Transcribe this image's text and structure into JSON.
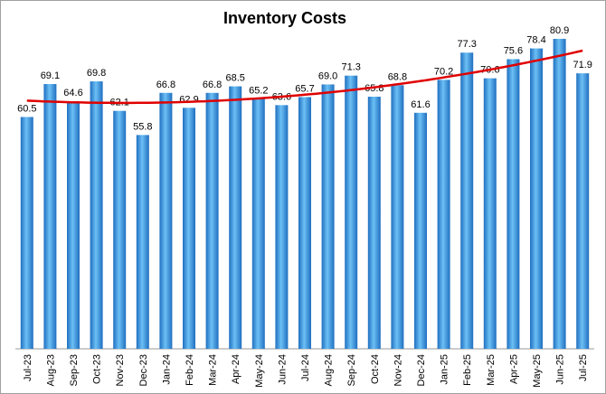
{
  "chart_data": {
    "type": "bar",
    "title": "Inventory Costs",
    "categories": [
      "Jul-23",
      "Aug-23",
      "Sep-23",
      "Oct-23",
      "Nov-23",
      "Dec-23",
      "Jan-24",
      "Feb-24",
      "Mar-24",
      "Apr-24",
      "May-24",
      "Jun-24",
      "Jul-24",
      "Aug-24",
      "Sep-24",
      "Oct-24",
      "Nov-24",
      "Dec-24",
      "Jan-25",
      "Feb-25",
      "Mar-25",
      "Apr-25",
      "May-25",
      "Jun-25",
      "Jul-25"
    ],
    "values": [
      60.5,
      69.1,
      64.6,
      69.8,
      62.1,
      55.8,
      66.8,
      62.9,
      66.8,
      68.5,
      65.2,
      63.6,
      65.7,
      69.0,
      71.3,
      65.8,
      68.8,
      61.6,
      70.2,
      77.3,
      70.6,
      75.6,
      78.4,
      80.9,
      71.9
    ],
    "value_labels": [
      "60.5",
      "69.1",
      "64.6",
      "69.8",
      "62.1",
      "55.8",
      "66.8",
      "62.9",
      "66.8",
      "68.5",
      "65.2",
      "63.6",
      "65.7",
      "69.0",
      "71.3",
      "65.8",
      "68.8",
      "61.6",
      "70.2",
      "77.3",
      "70.6",
      "75.6",
      "78.4",
      "80.9",
      "71.9"
    ],
    "color": "#3a8fd8",
    "ylim": [
      0,
      90
    ],
    "trendline": {
      "type": "polynomial",
      "order": 2,
      "color": "#e00000"
    }
  }
}
